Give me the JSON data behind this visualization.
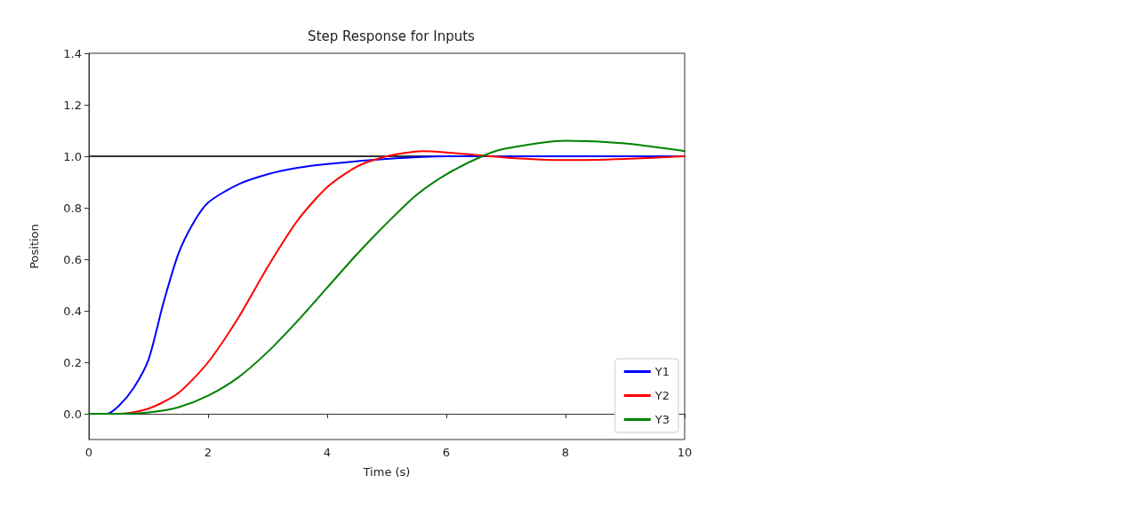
{
  "chart_data": {
    "type": "line",
    "title": "Step Response for Inputs",
    "xlabel": "Time (s)",
    "ylabel": "Position",
    "xlim": [
      0,
      10
    ],
    "xticks": [
      0,
      2,
      4,
      6,
      8,
      10
    ],
    "ylim": [
      -0.1,
      1.4
    ],
    "yticks": [
      {
        "value": 0,
        "label": "0.0"
      },
      0.2,
      0.4,
      0.6,
      0.8,
      {
        "value": 1,
        "label": "1.0"
      },
      1.2,
      1.4
    ],
    "grid": false,
    "legend": "bottom right",
    "marker": "none",
    "line_style": "solid",
    "series": [
      {
        "name": "Y1",
        "color": "#0000ff",
        "x": [
          0,
          0.3,
          0.5,
          0.75,
          1,
          1.25,
          1.5,
          1.75,
          2,
          2.5,
          3,
          3.5,
          4,
          5,
          6,
          7,
          8,
          9,
          10
        ],
        "values": [
          0,
          0,
          0.03,
          0.1,
          0.21,
          0.43,
          0.62,
          0.74,
          0.82,
          0.89,
          0.93,
          0.955,
          0.97,
          0.99,
          1.0,
          1.0,
          1.0,
          1.0,
          1.0
        ]
      },
      {
        "name": "Y2",
        "color": "#ff0000",
        "x": [
          0,
          0.5,
          1,
          1.5,
          2,
          2.5,
          3,
          3.5,
          4,
          4.5,
          5,
          5.6,
          6,
          7,
          8,
          9,
          10
        ],
        "values": [
          0,
          0,
          0.02,
          0.08,
          0.2,
          0.37,
          0.57,
          0.75,
          0.88,
          0.96,
          1.0,
          1.02,
          1.015,
          0.995,
          0.985,
          0.99,
          1.0
        ]
      },
      {
        "name": "Y3",
        "color": "#008000",
        "x": [
          0,
          0.5,
          1,
          1.5,
          2,
          2.5,
          3,
          3.5,
          4,
          4.5,
          5,
          5.5,
          6,
          6.6,
          7,
          8,
          9,
          10
        ],
        "values": [
          0,
          0,
          0.005,
          0.025,
          0.07,
          0.14,
          0.24,
          0.36,
          0.49,
          0.62,
          0.74,
          0.85,
          0.93,
          1.0,
          1.03,
          1.06,
          1.05,
          1.02
        ]
      }
    ],
    "ref_lines": [
      {
        "axis": "y",
        "value": 1.0,
        "color": "#333333",
        "line_style": "solid"
      }
    ]
  }
}
